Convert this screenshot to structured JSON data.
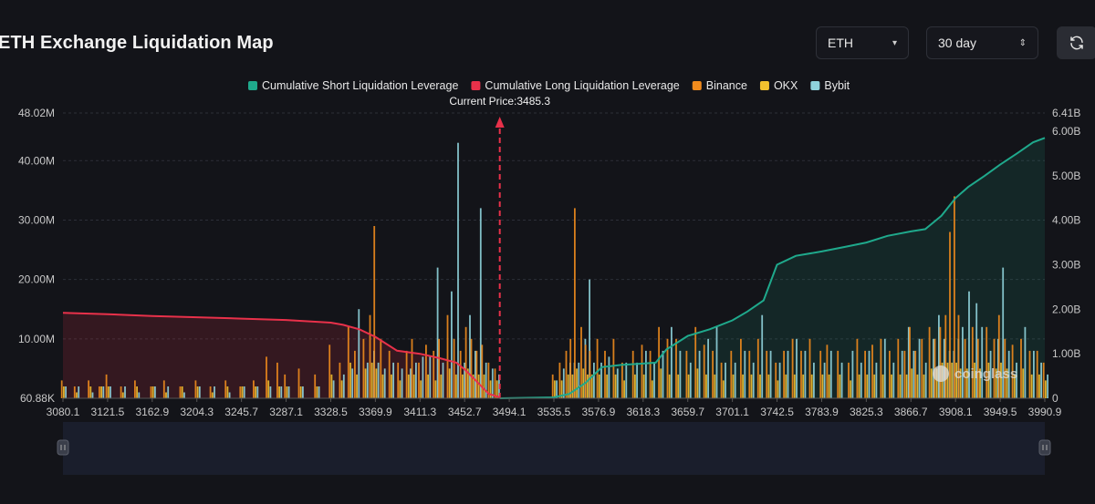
{
  "header": {
    "title": "ETH Exchange Liquidation Map",
    "coin_select": "ETH",
    "range_select": "30 day",
    "range_arrows": "⇕",
    "coin_arrow": "▾",
    "refresh_icon": "refresh-icon"
  },
  "colors": {
    "short": "#1fa98c",
    "long": "#e8314a",
    "binance": "#f08b1d",
    "okx": "#f2c12e",
    "bybit": "#8fd3dc",
    "current_price": "#e8314a"
  },
  "chart_data": {
    "type": "bar",
    "current_price_label": "Current Price:3485.3",
    "current_price": 3485.3,
    "x_ticks": [
      "3080.1",
      "3121.5",
      "3162.9",
      "3204.3",
      "3245.7",
      "3287.1",
      "3328.5",
      "3369.9",
      "3411.3",
      "3452.7",
      "3494.1",
      "3535.5",
      "3576.9",
      "3618.3",
      "3659.7",
      "3701.1",
      "3742.5",
      "3783.9",
      "3825.3",
      "3866.7",
      "3908.1",
      "3949.5",
      "3990.9"
    ],
    "x_range": [
      3080.1,
      3990.9
    ],
    "y_left_ticks": [
      "48.02M",
      "40.00M",
      "30.00M",
      "20.00M",
      "10.00M",
      "60.88K"
    ],
    "y_left_range": [
      0,
      48.02
    ],
    "y_right_ticks": [
      "6.41B",
      "6.00B",
      "5.00B",
      "4.00B",
      "3.00B",
      "2.00B",
      "1.00B",
      "0"
    ],
    "y_right_range": [
      0,
      6.41
    ],
    "legend": [
      "Cumulative Short Liquidation Leverage",
      "Cumulative Long Liquidation Leverage",
      "Binance",
      "OKX",
      "Bybit"
    ],
    "series": [
      {
        "name": "Cumulative Long Liquidation Leverage",
        "x": [
          3080.1,
          3121.5,
          3162.9,
          3204.3,
          3245.7,
          3287.1,
          3328.5,
          3340,
          3355,
          3369.9,
          3390,
          3411.3,
          3430,
          3445,
          3452.7,
          3465,
          3475,
          3485.3
        ],
        "values_b": [
          1.92,
          1.89,
          1.85,
          1.82,
          1.79,
          1.76,
          1.7,
          1.65,
          1.55,
          1.38,
          1.07,
          1.0,
          0.9,
          0.8,
          0.65,
          0.35,
          0.1,
          0.02
        ]
      },
      {
        "name": "Cumulative Short Liquidation Leverage",
        "x": [
          3485.3,
          3510,
          3535.5,
          3550,
          3565,
          3580,
          3598,
          3618.3,
          3630,
          3640,
          3659.7,
          3680,
          3701.1,
          3715,
          3730,
          3742.5,
          3760,
          3783.9,
          3805,
          3825.3,
          3845,
          3866.7,
          3880,
          3895,
          3908.1,
          3920,
          3935,
          3949.5,
          3965,
          3980,
          3990.9
        ],
        "values_b": [
          0.0,
          0.01,
          0.02,
          0.1,
          0.35,
          0.7,
          0.75,
          0.78,
          0.8,
          1.1,
          1.4,
          1.55,
          1.75,
          1.95,
          2.2,
          3.0,
          3.2,
          3.3,
          3.4,
          3.5,
          3.65,
          3.75,
          3.8,
          4.1,
          4.5,
          4.75,
          5.0,
          5.25,
          5.5,
          5.75,
          5.85
        ]
      }
    ],
    "exchange_bars_note": "Per-price liquidation leverage bars (in millions) for Binance, OKX and Bybit, drawn as stacked thin bars.",
    "exchange_bars": [
      [
        3080.1,
        3,
        2,
        2
      ],
      [
        3092,
        2,
        1,
        2
      ],
      [
        3105,
        3,
        2,
        1
      ],
      [
        3115,
        2,
        2,
        2
      ],
      [
        3121.5,
        4,
        2,
        2
      ],
      [
        3135,
        2,
        1,
        2
      ],
      [
        3148,
        3,
        2,
        1
      ],
      [
        3162.9,
        2,
        2,
        2
      ],
      [
        3175,
        3,
        1,
        2
      ],
      [
        3190,
        2,
        2,
        1
      ],
      [
        3204.3,
        3,
        2,
        2
      ],
      [
        3218,
        2,
        1,
        2
      ],
      [
        3232,
        3,
        2,
        1
      ],
      [
        3245.7,
        2,
        2,
        2
      ],
      [
        3258,
        3,
        2,
        2
      ],
      [
        3270,
        7,
        3,
        2
      ],
      [
        3280,
        6,
        2,
        2
      ],
      [
        3287.1,
        4,
        2,
        2
      ],
      [
        3300,
        5,
        2,
        2
      ],
      [
        3315,
        4,
        2,
        2
      ],
      [
        3328.5,
        9,
        4,
        3
      ],
      [
        3338,
        6,
        3,
        4
      ],
      [
        3346,
        12,
        6,
        5
      ],
      [
        3352,
        8,
        4,
        15
      ],
      [
        3360,
        10,
        5,
        6
      ],
      [
        3366,
        14,
        6,
        8
      ],
      [
        3370,
        29,
        5,
        6
      ],
      [
        3376,
        10,
        4,
        5
      ],
      [
        3384,
        8,
        4,
        6
      ],
      [
        3392,
        6,
        3,
        5
      ],
      [
        3400,
        8,
        4,
        5
      ],
      [
        3405,
        10,
        4,
        6
      ],
      [
        3411.3,
        6,
        3,
        7
      ],
      [
        3418,
        9,
        4,
        7
      ],
      [
        3425,
        8,
        3,
        22
      ],
      [
        3430,
        10,
        4,
        6
      ],
      [
        3438,
        14,
        5,
        18
      ],
      [
        3444,
        10,
        4,
        43
      ],
      [
        3450,
        8,
        4,
        6
      ],
      [
        3455,
        12,
        5,
        14
      ],
      [
        3460,
        10,
        4,
        8
      ],
      [
        3465,
        8,
        4,
        32
      ],
      [
        3470,
        9,
        4,
        6
      ],
      [
        3476,
        6,
        3,
        5
      ],
      [
        3482,
        5,
        3,
        4
      ],
      [
        3535.5,
        4,
        3,
        3
      ],
      [
        3542,
        6,
        3,
        5
      ],
      [
        3548,
        8,
        4,
        6
      ],
      [
        3552,
        10,
        4,
        6
      ],
      [
        3556,
        32,
        5,
        6
      ],
      [
        3562,
        12,
        5,
        10
      ],
      [
        3566,
        9,
        4,
        20
      ],
      [
        3570,
        8,
        4,
        6
      ],
      [
        3576.9,
        10,
        4,
        6
      ],
      [
        3584,
        8,
        4,
        7
      ],
      [
        3592,
        10,
        4,
        5
      ],
      [
        3600,
        6,
        3,
        6
      ],
      [
        3610,
        8,
        4,
        6
      ],
      [
        3618.3,
        9,
        4,
        8
      ],
      [
        3626,
        8,
        3,
        6
      ],
      [
        3634,
        12,
        5,
        8
      ],
      [
        3642,
        10,
        4,
        12
      ],
      [
        3650,
        10,
        4,
        8
      ],
      [
        3659.7,
        8,
        4,
        6
      ],
      [
        3668,
        12,
        5,
        8
      ],
      [
        3676,
        9,
        4,
        10
      ],
      [
        3684,
        8,
        4,
        12
      ],
      [
        3692,
        6,
        3,
        6
      ],
      [
        3701.1,
        8,
        4,
        6
      ],
      [
        3710,
        10,
        4,
        8
      ],
      [
        3718,
        8,
        4,
        6
      ],
      [
        3726,
        10,
        4,
        14
      ],
      [
        3734,
        8,
        4,
        8
      ],
      [
        3742.5,
        6,
        3,
        6
      ],
      [
        3750,
        8,
        4,
        8
      ],
      [
        3758,
        10,
        4,
        10
      ],
      [
        3766,
        8,
        4,
        8
      ],
      [
        3774,
        10,
        4,
        6
      ],
      [
        3783.9,
        8,
        4,
        6
      ],
      [
        3790,
        9,
        4,
        8
      ],
      [
        3800,
        8,
        4,
        6
      ],
      [
        3810,
        6,
        3,
        8
      ],
      [
        3818,
        10,
        4,
        6
      ],
      [
        3825.3,
        8,
        4,
        8
      ],
      [
        3832,
        9,
        4,
        6
      ],
      [
        3840,
        10,
        4,
        10
      ],
      [
        3848,
        8,
        4,
        6
      ],
      [
        3856,
        10,
        4,
        8
      ],
      [
        3862,
        8,
        4,
        12
      ],
      [
        3866.7,
        12,
        5,
        8
      ],
      [
        3872,
        8,
        4,
        10
      ],
      [
        3878,
        10,
        4,
        6
      ],
      [
        3885,
        12,
        5,
        10
      ],
      [
        3890,
        10,
        5,
        14
      ],
      [
        3895,
        12,
        6,
        10
      ],
      [
        3900,
        14,
        6,
        8
      ],
      [
        3904,
        28,
        6,
        8
      ],
      [
        3908.1,
        34,
        6,
        10
      ],
      [
        3912,
        14,
        5,
        12
      ],
      [
        3918,
        10,
        5,
        18
      ],
      [
        3925,
        12,
        6,
        16
      ],
      [
        3930,
        10,
        5,
        12
      ],
      [
        3938,
        12,
        6,
        8
      ],
      [
        3945,
        10,
        5,
        10
      ],
      [
        3949.5,
        14,
        6,
        22
      ],
      [
        3955,
        10,
        5,
        8
      ],
      [
        3962,
        9,
        4,
        6
      ],
      [
        3970,
        10,
        5,
        12
      ],
      [
        3978,
        8,
        4,
        8
      ],
      [
        3985,
        8,
        4,
        6
      ],
      [
        3990.9,
        6,
        3,
        4
      ]
    ]
  }
}
